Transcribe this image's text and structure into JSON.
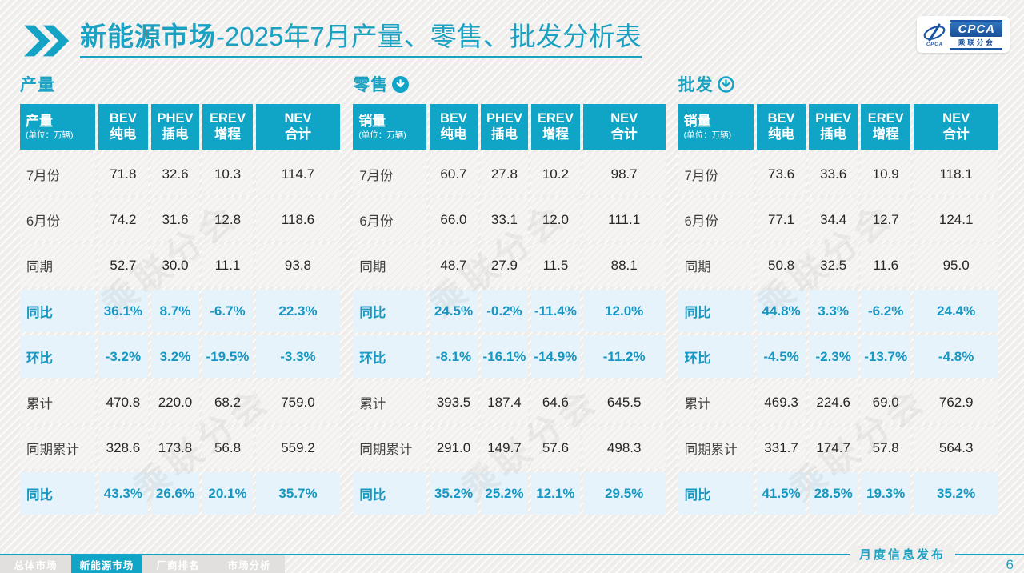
{
  "header": {
    "title_main": "新能源市场",
    "title_rest": "-2025年7月产量、零售、批发分析表"
  },
  "logo": {
    "acronym": "CPCA",
    "org_name": "乘联分会",
    "swoosh_label": "CPCA"
  },
  "colors": {
    "accent": "#10A5C6",
    "accent_text": "#1BA1C2",
    "percent_text": "#1797C1",
    "highlight_row": "#E7F3FA",
    "logo_blue": "#1B4F99"
  },
  "watermark_text": "乘联分会",
  "tables": [
    {
      "id": "production",
      "section_label": "产量",
      "icon": "none",
      "first_col_label": "产量",
      "unit": "(单位：万辆)",
      "columns": [
        {
          "en": "BEV",
          "zh": "纯电"
        },
        {
          "en": "PHEV",
          "zh": "插电"
        },
        {
          "en": "EREV",
          "zh": "增程"
        },
        {
          "en": "NEV",
          "zh": "合计"
        }
      ],
      "rows": [
        {
          "label": "7月份",
          "highlight": false,
          "values": [
            "71.8",
            "32.6",
            "10.3",
            "114.7"
          ]
        },
        {
          "label": "6月份",
          "highlight": false,
          "values": [
            "74.2",
            "31.6",
            "12.8",
            "118.6"
          ]
        },
        {
          "label": "同期",
          "highlight": false,
          "values": [
            "52.7",
            "30.0",
            "11.1",
            "93.8"
          ]
        },
        {
          "label": "同比",
          "highlight": true,
          "values": [
            "36.1%",
            "8.7%",
            "-6.7%",
            "22.3%"
          ]
        },
        {
          "label": "环比",
          "highlight": true,
          "values": [
            "-3.2%",
            "3.2%",
            "-19.5%",
            "-3.3%"
          ]
        },
        {
          "label": "累计",
          "highlight": false,
          "values": [
            "470.8",
            "220.0",
            "68.2",
            "759.0"
          ]
        },
        {
          "label": "同期累计",
          "highlight": false,
          "values": [
            "328.6",
            "173.8",
            "56.8",
            "559.2"
          ]
        },
        {
          "label": "同比",
          "highlight": true,
          "values": [
            "43.3%",
            "26.6%",
            "20.1%",
            "35.7%"
          ]
        }
      ]
    },
    {
      "id": "retail",
      "section_label": "零售",
      "icon": "arrow-down-filled",
      "first_col_label": "销量",
      "unit": "(单位：万辆)",
      "columns": [
        {
          "en": "BEV",
          "zh": "纯电"
        },
        {
          "en": "PHEV",
          "zh": "插电"
        },
        {
          "en": "EREV",
          "zh": "增程"
        },
        {
          "en": "NEV",
          "zh": "合计"
        }
      ],
      "rows": [
        {
          "label": "7月份",
          "highlight": false,
          "values": [
            "60.7",
            "27.8",
            "10.2",
            "98.7"
          ]
        },
        {
          "label": "6月份",
          "highlight": false,
          "values": [
            "66.0",
            "33.1",
            "12.0",
            "111.1"
          ]
        },
        {
          "label": "同期",
          "highlight": false,
          "values": [
            "48.7",
            "27.9",
            "11.5",
            "88.1"
          ]
        },
        {
          "label": "同比",
          "highlight": true,
          "values": [
            "24.5%",
            "-0.2%",
            "-11.4%",
            "12.0%"
          ]
        },
        {
          "label": "环比",
          "highlight": true,
          "values": [
            "-8.1%",
            "-16.1%",
            "-14.9%",
            "-11.2%"
          ]
        },
        {
          "label": "累计",
          "highlight": false,
          "values": [
            "393.5",
            "187.4",
            "64.6",
            "645.5"
          ]
        },
        {
          "label": "同期累计",
          "highlight": false,
          "values": [
            "291.0",
            "149.7",
            "57.6",
            "498.3"
          ]
        },
        {
          "label": "同比",
          "highlight": true,
          "values": [
            "35.2%",
            "25.2%",
            "12.1%",
            "29.5%"
          ]
        }
      ]
    },
    {
      "id": "wholesale",
      "section_label": "批发",
      "icon": "arrow-down-outline",
      "first_col_label": "销量",
      "unit": "(单位：万辆)",
      "columns": [
        {
          "en": "BEV",
          "zh": "纯电"
        },
        {
          "en": "PHEV",
          "zh": "插电"
        },
        {
          "en": "EREV",
          "zh": "增程"
        },
        {
          "en": "NEV",
          "zh": "合计"
        }
      ],
      "rows": [
        {
          "label": "7月份",
          "highlight": false,
          "values": [
            "73.6",
            "33.6",
            "10.9",
            "118.1"
          ]
        },
        {
          "label": "6月份",
          "highlight": false,
          "values": [
            "77.1",
            "34.4",
            "12.7",
            "124.1"
          ]
        },
        {
          "label": "同期",
          "highlight": false,
          "values": [
            "50.8",
            "32.5",
            "11.6",
            "95.0"
          ]
        },
        {
          "label": "同比",
          "highlight": true,
          "values": [
            "44.8%",
            "3.3%",
            "-6.2%",
            "24.4%"
          ]
        },
        {
          "label": "环比",
          "highlight": true,
          "values": [
            "-4.5%",
            "-2.3%",
            "-13.7%",
            "-4.8%"
          ]
        },
        {
          "label": "累计",
          "highlight": false,
          "values": [
            "469.3",
            "224.6",
            "69.0",
            "762.9"
          ]
        },
        {
          "label": "同期累计",
          "highlight": false,
          "values": [
            "331.7",
            "174.7",
            "57.8",
            "564.3"
          ]
        },
        {
          "label": "同比",
          "highlight": true,
          "values": [
            "41.5%",
            "28.5%",
            "19.3%",
            "35.2%"
          ]
        }
      ]
    }
  ],
  "footer": {
    "label": "月度信息发布",
    "page_number": "6"
  },
  "nav": {
    "tabs": [
      {
        "label": "总体市场",
        "active": false
      },
      {
        "label": "新能源市场",
        "active": true
      },
      {
        "label": "厂商排名",
        "active": false
      },
      {
        "label": "市场分析",
        "active": false
      }
    ]
  }
}
